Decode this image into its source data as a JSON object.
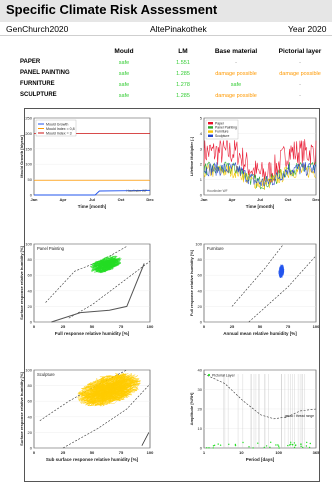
{
  "header": {
    "title": "Specific Climate Risk Assessment",
    "project": "GenChurch2020",
    "location": "AltePinakothek",
    "year": "Year 2020"
  },
  "table": {
    "columns": [
      "Mould",
      "LM",
      "Base material",
      "Pictorial layer"
    ],
    "rows": [
      {
        "label": "PAPER",
        "mould": "safe",
        "lm": "1.551",
        "base": "-",
        "pictorial": "-"
      },
      {
        "label": "PANEL PAINTING",
        "mould": "safe",
        "lm": "1.285",
        "base": "damage possible",
        "pictorial": "damage possible"
      },
      {
        "label": "FURNITURE",
        "mould": "safe",
        "lm": "1.278",
        "base": "safe",
        "pictorial": "-"
      },
      {
        "label": "SCULPTURE",
        "mould": "safe",
        "lm": "1.285",
        "base": "damage possible",
        "pictorial": "-"
      }
    ]
  },
  "colors": {
    "safe": "#33cc33",
    "damage": "#ff9900",
    "neutral": "#888888",
    "green_series": "#22dd22",
    "blue_series": "#2255ee",
    "gold_series": "#ffcc00"
  },
  "chart_data": [
    {
      "type": "line",
      "title": "",
      "legend": [
        "Mould Growth",
        "Mould Index = 0,8",
        "Mould Index = 3"
      ],
      "xlabel": "Time [month]",
      "ylabel": "Mould Growth [h/year]",
      "x_ticks": [
        "Jan",
        "Apr",
        "Jul",
        "Oct",
        "Dec"
      ],
      "y_ticks": [
        "0",
        "50",
        "100",
        "150",
        "200",
        "250"
      ],
      "ylim": [
        0,
        250
      ],
      "series": [
        {
          "name": "Mould Growth",
          "x": [
            1,
            6.8,
            7.2,
            12
          ],
          "y": [
            0,
            0,
            13,
            15
          ]
        },
        {
          "name": "Mould Index = 0,8",
          "x": [
            1,
            12
          ],
          "y": [
            48,
            48
          ]
        },
        {
          "name": "Mould Index = 3",
          "x": [
            1,
            12
          ],
          "y": [
            200,
            200
          ]
        }
      ],
      "note": "Hourlinder WF"
    },
    {
      "type": "line",
      "title": "",
      "legend": [
        "Paper",
        "Panel Painting",
        "Furniture",
        "Sculpture"
      ],
      "xlabel": "Time [month]",
      "ylabel": "Lifetime Multiplier [-]",
      "x_ticks": [
        "Jan",
        "Apr",
        "Jul",
        "Oct",
        "Dec"
      ],
      "y_ticks": [
        "0",
        "1",
        "2",
        "3",
        "4",
        "5"
      ],
      "ylim": [
        0,
        5
      ],
      "note": "Hourlinder WF"
    },
    {
      "type": "scatter",
      "title": "Panel Painting",
      "xlabel": "Full response relative humidity [%]",
      "ylabel": "Surface response relative humidity [%]",
      "x_ticks": [
        "0",
        "25",
        "50",
        "75",
        "100"
      ],
      "y_ticks": [
        "0",
        "20",
        "40",
        "60",
        "80",
        "100"
      ],
      "xlim": [
        0,
        100
      ],
      "ylim": [
        0,
        100
      ],
      "series": [
        {
          "name": "Panel Painting",
          "color_key": "green_series",
          "cluster_x": [
            45,
            75
          ],
          "cluster_y": [
            55,
            90
          ]
        }
      ]
    },
    {
      "type": "scatter",
      "title": "Furniture",
      "xlabel": "Annual mean relative humidity [%]",
      "ylabel": "Full response relative humidity [%]",
      "x_ticks": [
        "0",
        "25",
        "50",
        "75",
        "100"
      ],
      "y_ticks": [
        "0",
        "20",
        "40",
        "60",
        "80",
        "100"
      ],
      "xlim": [
        0,
        100
      ],
      "ylim": [
        0,
        100
      ],
      "series": [
        {
          "name": "Furniture",
          "color_key": "blue_series",
          "cluster_x": [
            66,
            72
          ],
          "cluster_y": [
            56,
            76
          ]
        }
      ]
    },
    {
      "type": "scatter",
      "title": "Sculpture",
      "xlabel": "Sub surface response relative humidity [%]",
      "ylabel": "Surface response relative humidity [%]",
      "x_ticks": [
        "0",
        "25",
        "50",
        "75",
        "100"
      ],
      "y_ticks": [
        "0",
        "20",
        "40",
        "60",
        "80",
        "100"
      ],
      "xlim": [
        0,
        100
      ],
      "ylim": [
        0,
        100
      ],
      "series": [
        {
          "name": "Sculpture",
          "color_key": "gold_series",
          "cluster_x": [
            35,
            95
          ],
          "cluster_y": [
            45,
            98
          ]
        }
      ]
    },
    {
      "type": "scatter",
      "title": "",
      "legend": [
        "Pictorial Layer"
      ],
      "annotation": "gesso / thread range",
      "xlabel": "Period [days]",
      "ylabel": "Amplitude [%RH]",
      "x_ticks": [
        "1",
        "10",
        "100",
        "365"
      ],
      "y_ticks": [
        "0",
        "10",
        "20",
        "30",
        "40"
      ],
      "ylim": [
        0,
        40
      ],
      "x_scale": "log"
    }
  ]
}
